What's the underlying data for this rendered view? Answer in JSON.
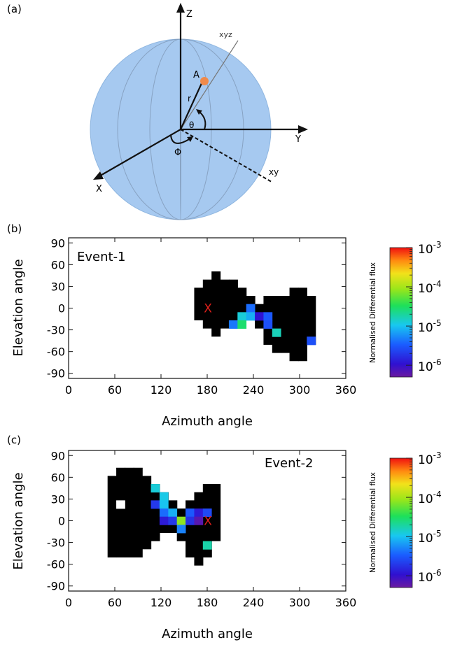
{
  "panel_a": {
    "label": "(a)",
    "axis_z": "Z",
    "axis_y": "Y",
    "axis_x": "X",
    "axis_xyz": "xyz",
    "axis_xy": "xy",
    "point": "A",
    "radius": "r",
    "theta": "θ",
    "phi": "Φ",
    "sphere_color": "#a6c9f0",
    "point_color": "#f08a4b"
  },
  "colorbar": {
    "title": "Normalised Differential flux",
    "ticks": [
      {
        "base": "10",
        "exp": "-3",
        "v": -3
      },
      {
        "base": "10",
        "exp": "-4",
        "v": -4
      },
      {
        "base": "10",
        "exp": "-5",
        "v": -5
      },
      {
        "base": "10",
        "exp": "-6",
        "v": -6
      }
    ],
    "range_log10": [
      -6.3,
      -3
    ]
  },
  "chart_data": [
    {
      "panel_label": "(b)",
      "type": "heatmap",
      "event_label": "Event-1",
      "xlabel": "Azimuth angle",
      "ylabel": "Elevation angle",
      "xlim": [
        0,
        360
      ],
      "ylim": [
        -97,
        97
      ],
      "xticks": [
        "0",
        "60",
        "120",
        "180",
        "240",
        "300",
        "360"
      ],
      "yticks": [
        "90",
        "60",
        "30",
        "0",
        "-30",
        "-60",
        "-90"
      ],
      "cell_size_deg": [
        11.25,
        11.25
      ],
      "marker": {
        "text": "X",
        "az": 181,
        "el": 1,
        "color": "#e0201b"
      },
      "black_columns": [
        {
          "az": 168.75,
          "el": [
            -11.25,
            22.5
          ]
        },
        {
          "az": 180.0,
          "el": [
            -22.5,
            33.75
          ]
        },
        {
          "az": 191.25,
          "el": [
            -33.75,
            45.0
          ]
        },
        {
          "az": 202.5,
          "el": [
            -22.5,
            33.75
          ]
        },
        {
          "az": 213.75,
          "el": [
            -11.25,
            33.75
          ]
        },
        {
          "az": 225.0,
          "el": [
            -11.25,
            22.5
          ]
        },
        {
          "az": 236.25,
          "el": [
            -11.25,
            11.25
          ]
        },
        {
          "az": 247.5,
          "el": [
            -22.5,
            0
          ]
        },
        {
          "az": 258.75,
          "el": [
            -45.0,
            11.25
          ]
        },
        {
          "az": 270.0,
          "el": [
            -56.25,
            11.25
          ]
        },
        {
          "az": 281.25,
          "el": [
            -56.25,
            11.25
          ]
        },
        {
          "az": 292.5,
          "el": [
            -67.5,
            22.5
          ]
        },
        {
          "az": 303.75,
          "el": [
            -67.5,
            22.5
          ]
        },
        {
          "az": 315.0,
          "el": [
            -45.0,
            11.25
          ]
        }
      ],
      "flux_cells": [
        {
          "az": 213.75,
          "el": -22.5,
          "log10": -5.35
        },
        {
          "az": 225.0,
          "el": -11.25,
          "log10": -4.9
        },
        {
          "az": 225.0,
          "el": -22.5,
          "log10": -4.55
        },
        {
          "az": 236.25,
          "el": 0.0,
          "log10": -5.4
        },
        {
          "az": 236.25,
          "el": -11.25,
          "log10": -5.1
        },
        {
          "az": 247.5,
          "el": -11.25,
          "log10": -5.95
        },
        {
          "az": 258.75,
          "el": -11.25,
          "log10": -5.5
        },
        {
          "az": 258.75,
          "el": -22.5,
          "log10": -5.55
        },
        {
          "az": 270.0,
          "el": -33.75,
          "log10": -4.8
        },
        {
          "az": 315.0,
          "el": -45.0,
          "log10": -5.55
        }
      ]
    },
    {
      "panel_label": "(c)",
      "type": "heatmap",
      "event_label": "Event-2",
      "xlabel": "Azimuth angle",
      "ylabel": "Elevation angle",
      "xlim": [
        0,
        360
      ],
      "ylim": [
        -97,
        97
      ],
      "xticks": [
        "0",
        "60",
        "120",
        "180",
        "240",
        "300",
        "360"
      ],
      "yticks": [
        "90",
        "60",
        "30",
        "0",
        "-30",
        "-60",
        "-90"
      ],
      "cell_size_deg": [
        11.25,
        11.25
      ],
      "marker": {
        "text": "X",
        "az": 181,
        "el": 1,
        "color": "#e0201b"
      },
      "black_columns": [
        {
          "az": 56.25,
          "el": [
            -45.0,
            56.25
          ]
        },
        {
          "az": 67.5,
          "el": [
            -45.0,
            67.5
          ]
        },
        {
          "az": 78.75,
          "el": [
            -45.0,
            67.5
          ]
        },
        {
          "az": 90.0,
          "el": [
            -45.0,
            67.5
          ]
        },
        {
          "az": 101.25,
          "el": [
            -33.75,
            56.25
          ]
        },
        {
          "az": 112.5,
          "el": [
            -22.5,
            45.0
          ]
        },
        {
          "az": 123.75,
          "el": [
            -11.25,
            33.75
          ]
        },
        {
          "az": 135.0,
          "el": [
            -11.25,
            22.5
          ]
        },
        {
          "az": 146.25,
          "el": [
            -22.5,
            11.25
          ]
        },
        {
          "az": 157.5,
          "el": [
            -45.0,
            22.5
          ]
        },
        {
          "az": 168.75,
          "el": [
            -56.25,
            33.75
          ]
        },
        {
          "az": 180.0,
          "el": [
            -45.0,
            45.0
          ]
        },
        {
          "az": 191.25,
          "el": [
            -22.5,
            45.0
          ]
        }
      ],
      "flux_cells": [
        {
          "az": 67.5,
          "el": 22.5,
          "log10": 0,
          "white": true
        },
        {
          "az": 112.5,
          "el": 22.5,
          "log10": -5.7
        },
        {
          "az": 112.5,
          "el": 45.0,
          "log10": -4.9
        },
        {
          "az": 123.75,
          "el": 33.75,
          "log10": -4.95
        },
        {
          "az": 123.75,
          "el": 22.5,
          "log10": -5.0
        },
        {
          "az": 123.75,
          "el": 11.25,
          "log10": -5.4
        },
        {
          "az": 123.75,
          "el": 0.0,
          "log10": -5.9
        },
        {
          "az": 135.0,
          "el": 11.25,
          "log10": -5.1
        },
        {
          "az": 135.0,
          "el": 0.0,
          "log10": -5.7
        },
        {
          "az": 146.25,
          "el": 0.0,
          "log10": -4.1
        },
        {
          "az": 146.25,
          "el": -11.25,
          "log10": -5.3
        },
        {
          "az": 157.5,
          "el": 11.25,
          "log10": -5.5
        },
        {
          "az": 157.5,
          "el": 0.0,
          "log10": -5.75
        },
        {
          "az": 168.75,
          "el": 11.25,
          "log10": -5.9
        },
        {
          "az": 168.75,
          "el": 0.0,
          "log10": -6.2
        },
        {
          "az": 180.0,
          "el": 11.25,
          "log10": -5.6
        },
        {
          "az": 180.0,
          "el": -33.75,
          "log10": -4.75
        }
      ]
    }
  ]
}
